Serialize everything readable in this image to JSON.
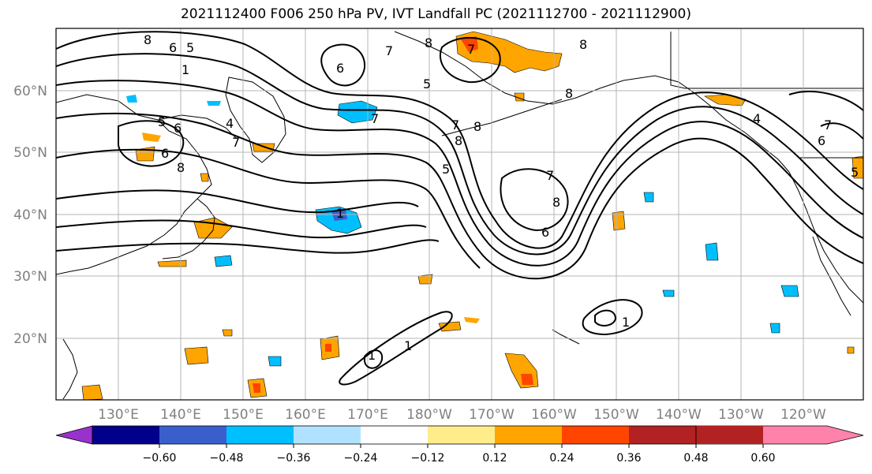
{
  "title": "2021112400 F006 250 hPa PV, IVT Landfall PC (2021112700 - 2021112900)",
  "latitude_labels": [
    "60°N",
    "50°N",
    "40°N",
    "30°N",
    "20°N"
  ],
  "longitude_labels": [
    "130°E",
    "140°E",
    "150°E",
    "160°E",
    "170°E",
    "180°W",
    "170°W",
    "160°W",
    "150°W",
    "140°W",
    "130°W",
    "120°W"
  ],
  "colorbar": {
    "tick_labels": [
      "−0.60",
      "−0.48",
      "−0.36",
      "−0.24",
      "−0.12",
      "0.12",
      "0.24",
      "0.36",
      "0.48",
      "0.60"
    ],
    "colors": [
      "#9932cc",
      "#00008b",
      "#3a5fcd",
      "#00bfff",
      "#b0e2ff",
      "#ffffff",
      "#ffec8b",
      "#ffa500",
      "#ff4500",
      "#b22222",
      "#ff82ab"
    ]
  },
  "contour_labels": [
    "8",
    "6",
    "5",
    "1",
    "6",
    "4",
    "7",
    "5",
    "6",
    "8",
    "1",
    "6",
    "7",
    "8",
    "5",
    "7",
    "8",
    "8",
    "7",
    "4",
    "6",
    "7",
    "5",
    "7",
    "6",
    "8",
    "8",
    "8",
    "7",
    "5",
    "1",
    "1",
    "1"
  ]
}
